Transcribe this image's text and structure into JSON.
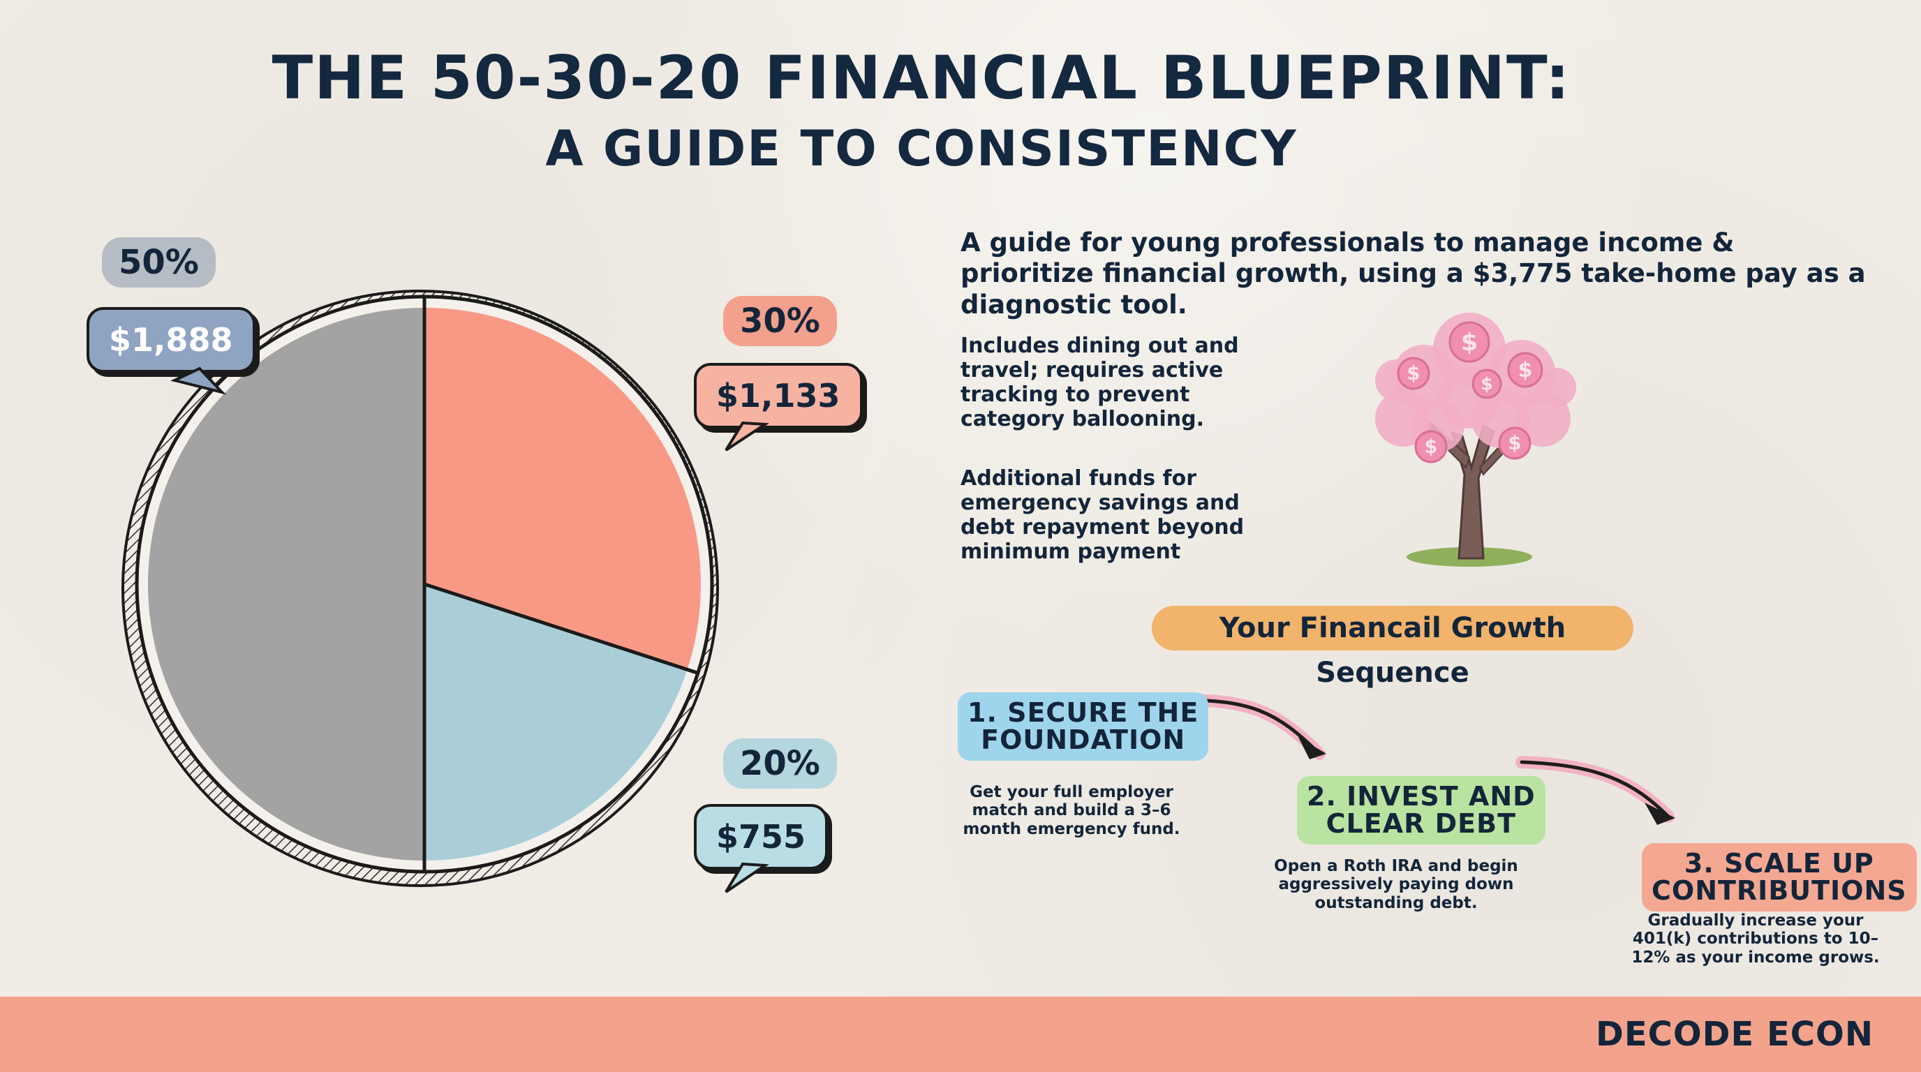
{
  "title": {
    "line1": "THE 50-30-20 FINANCIAL BLUEPRINT:",
    "line2": "A GUIDE TO CONSISTENCY"
  },
  "chart_data": {
    "type": "pie",
    "slices": [
      {
        "percent": 50,
        "amount": "$1,888",
        "pct_label": "50%",
        "color": "#9c9c9c",
        "bubble_color": "#b6bcc4",
        "amount_color": "#8fa4c2"
      },
      {
        "percent": 30,
        "amount": "$1,133",
        "pct_label": "30%",
        "color": "#f7917c",
        "bubble_color": "#f3a08d",
        "amount_color": "#f7b3a2"
      },
      {
        "percent": 20,
        "amount": "$755",
        "pct_label": "20%",
        "color": "#a3cbd6",
        "bubble_color": "#b4d6de",
        "amount_color": "#b9dde4"
      }
    ]
  },
  "intro": "A guide for young professionals to manage income & prioritize financial growth, using a $3,775 take-home pay as a diagnostic tool.",
  "notes": {
    "wants": "Includes dining out and travel; requires active tracking to prevent category ballooning.",
    "savings": "Additional funds for emergency savings and debt repayment beyond minimum payment"
  },
  "tree": {
    "icon": "money-tree-icon",
    "symbol": "$",
    "blossom_color": "#f2aec4",
    "trunk_color": "#7a5c58"
  },
  "sequence": {
    "title": "Your Financail Growth Sequence",
    "steps": [
      {
        "label_l1": "1. SECURE THE",
        "label_l2": "FOUNDATION",
        "color": "#9fd5ec",
        "desc": "Get your full employer match and build a 3–6 month emergency fund."
      },
      {
        "label_l1": "2. INVEST AND",
        "label_l2": "CLEAR DEBT",
        "color": "#b9e3a0",
        "desc": "Open a Roth IRA and begin aggressively paying down outstanding debt."
      },
      {
        "label_l1": "3. SCALE UP",
        "label_l2": "CONTRIBUTIONS",
        "color": "#f4a892",
        "desc": "Gradually increase your 401(k) contributions to 10–12% as your income grows."
      }
    ]
  },
  "footer": {
    "brand": "DECODE ECON",
    "color": "#f3a28c"
  }
}
